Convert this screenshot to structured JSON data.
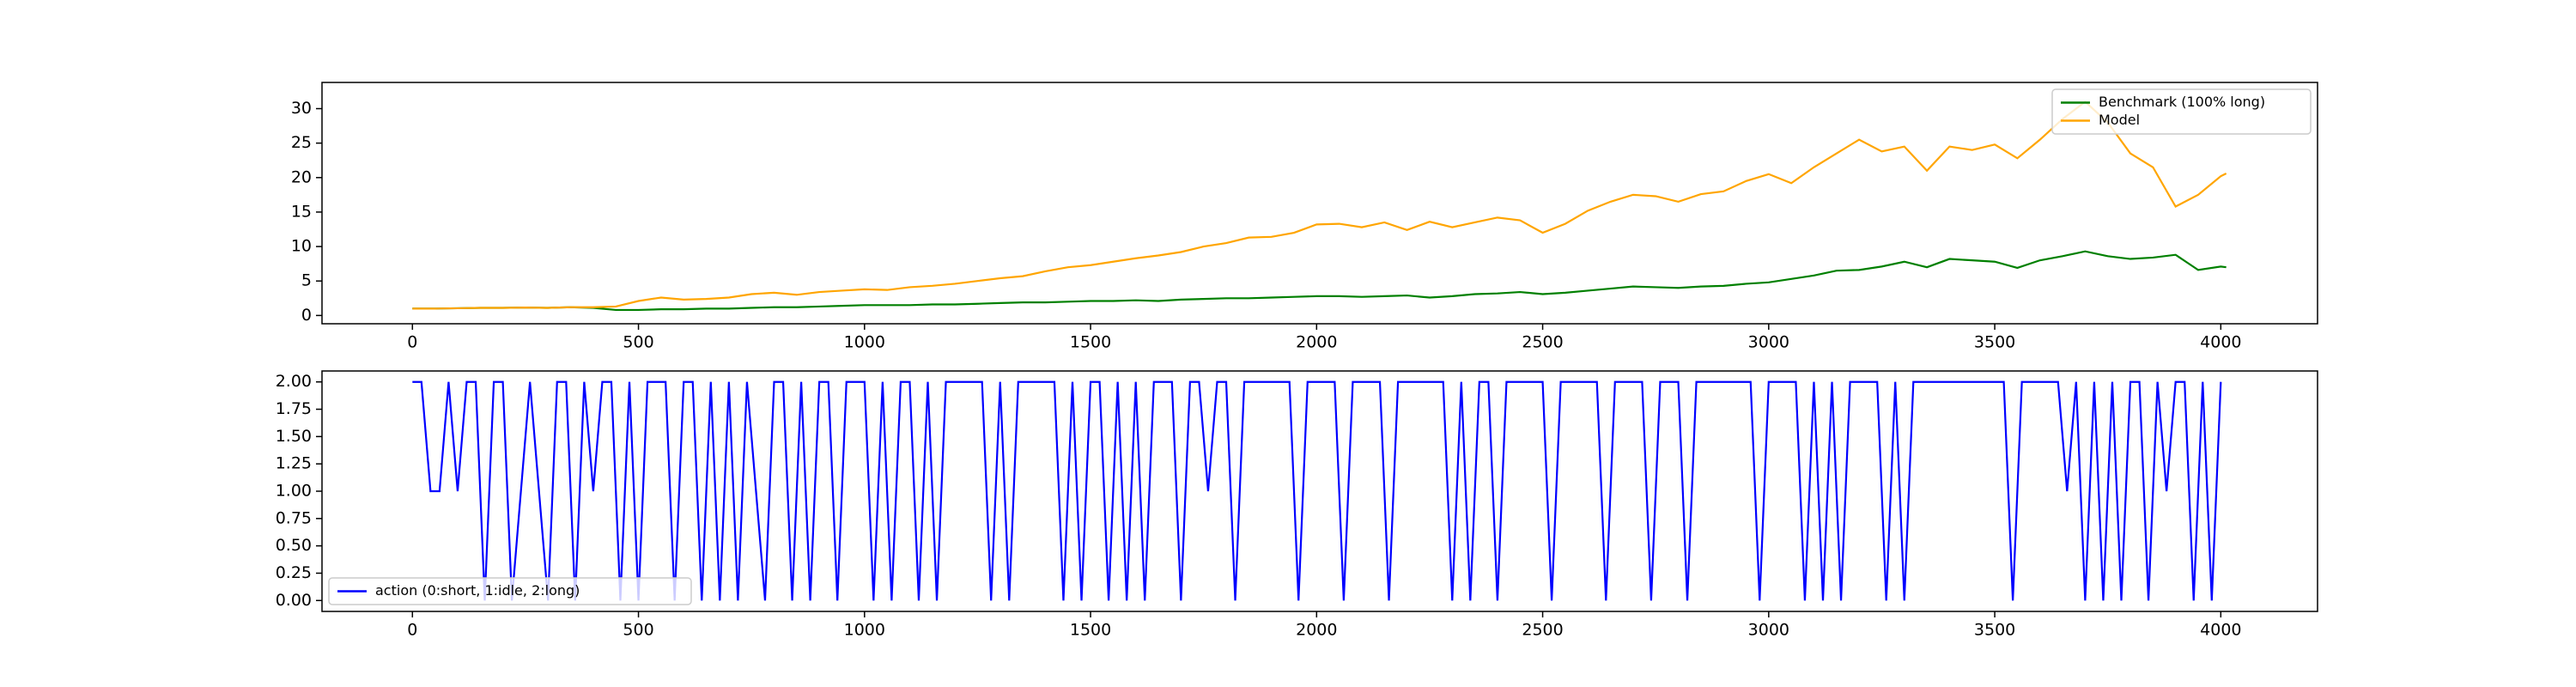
{
  "chart_data": [
    {
      "type": "line",
      "legend": "upper right",
      "x": [
        0,
        50,
        100,
        150,
        200,
        250,
        300,
        350,
        400,
        450,
        500,
        550,
        600,
        650,
        700,
        750,
        800,
        850,
        900,
        950,
        1000,
        1050,
        1100,
        1150,
        1200,
        1250,
        1300,
        1350,
        1400,
        1450,
        1500,
        1550,
        1600,
        1650,
        1700,
        1750,
        1800,
        1850,
        1900,
        1950,
        2000,
        2050,
        2100,
        2150,
        2200,
        2250,
        2300,
        2350,
        2400,
        2450,
        2500,
        2550,
        2600,
        2650,
        2700,
        2750,
        2800,
        2850,
        2900,
        2950,
        3000,
        3050,
        3100,
        3150,
        3200,
        3250,
        3300,
        3350,
        3400,
        3450,
        3500,
        3550,
        3600,
        3650,
        3700,
        3750,
        3800,
        3850,
        3900,
        3950,
        4000,
        4012
      ],
      "series": [
        {
          "name": "Benchmark (100% long)",
          "color": "#008000",
          "values": [
            1,
            1,
            1.05,
            1.1,
            1.1,
            1.15,
            1.1,
            1.2,
            1.1,
            0.8,
            0.8,
            0.9,
            0.9,
            1,
            1,
            1.1,
            1.2,
            1.2,
            1.3,
            1.4,
            1.5,
            1.5,
            1.5,
            1.6,
            1.6,
            1.7,
            1.8,
            1.9,
            1.9,
            2,
            2.1,
            2.1,
            2.2,
            2.1,
            2.3,
            2.4,
            2.5,
            2.5,
            2.6,
            2.7,
            2.8,
            2.8,
            2.7,
            2.8,
            2.9,
            2.6,
            2.8,
            3.1,
            3.2,
            3.4,
            3.1,
            3.3,
            3.6,
            3.9,
            4.2,
            4.1,
            4,
            4.2,
            4.3,
            4.6,
            4.8,
            5.3,
            5.8,
            6.5,
            6.6,
            7.1,
            7.8,
            7,
            8.2,
            8,
            7.8,
            6.9,
            8,
            8.6,
            9.3,
            8.6,
            8.2,
            8.4,
            8.8,
            6.6,
            7.1,
            7.0
          ]
        },
        {
          "name": "Model",
          "color": "#ffa500",
          "values": [
            1,
            1,
            1.05,
            1.1,
            1.1,
            1.15,
            1.1,
            1.2,
            1.2,
            1.3,
            2.1,
            2.6,
            2.3,
            2.4,
            2.6,
            3.1,
            3.3,
            3,
            3.4,
            3.6,
            3.8,
            3.7,
            4.1,
            4.3,
            4.6,
            5,
            5.4,
            5.7,
            6.4,
            7,
            7.3,
            7.8,
            8.3,
            8.7,
            9.2,
            10,
            10.5,
            11.3,
            11.4,
            12,
            13.2,
            13.3,
            12.8,
            13.5,
            12.4,
            13.6,
            12.8,
            13.5,
            14.2,
            13.8,
            12,
            13.3,
            15.2,
            16.5,
            17.5,
            17.3,
            16.5,
            17.6,
            18,
            19.5,
            20.5,
            19.2,
            21.5,
            23.5,
            25.5,
            23.8,
            24.5,
            21,
            24.5,
            24,
            24.8,
            22.8,
            25.5,
            28.5,
            31,
            28,
            23.5,
            21.5,
            15.8,
            17.5,
            20.2,
            20.6
          ]
        }
      ],
      "xlim": [
        -200,
        4214
      ],
      "xticks": [
        0,
        500,
        1000,
        1500,
        2000,
        2500,
        3000,
        3500,
        4000
      ],
      "ylim": [
        -1.2,
        33.8
      ],
      "yticks": [
        0,
        5,
        10,
        15,
        20,
        25,
        30
      ]
    },
    {
      "type": "line",
      "legend": "lower left",
      "x": [
        0,
        20,
        40,
        60,
        80,
        100,
        120,
        140,
        160,
        180,
        200,
        220,
        240,
        260,
        280,
        300,
        320,
        340,
        360,
        380,
        400,
        420,
        440,
        460,
        480,
        500,
        520,
        540,
        560,
        580,
        600,
        620,
        640,
        660,
        680,
        700,
        720,
        740,
        760,
        780,
        800,
        820,
        840,
        860,
        880,
        900,
        920,
        940,
        960,
        980,
        1000,
        1020,
        1040,
        1060,
        1080,
        1100,
        1120,
        1140,
        1160,
        1180,
        1200,
        1220,
        1240,
        1260,
        1280,
        1300,
        1320,
        1340,
        1360,
        1380,
        1400,
        1420,
        1440,
        1460,
        1480,
        1500,
        1520,
        1540,
        1560,
        1580,
        1600,
        1620,
        1640,
        1660,
        1680,
        1700,
        1720,
        1740,
        1760,
        1780,
        1800,
        1820,
        1840,
        1860,
        1880,
        1900,
        1920,
        1940,
        1960,
        1980,
        2000,
        2020,
        2040,
        2060,
        2080,
        2100,
        2120,
        2140,
        2160,
        2180,
        2200,
        2220,
        2240,
        2260,
        2280,
        2300,
        2320,
        2340,
        2360,
        2380,
        2400,
        2420,
        2440,
        2460,
        2480,
        2500,
        2520,
        2540,
        2560,
        2580,
        2600,
        2620,
        2640,
        2660,
        2680,
        2700,
        2720,
        2740,
        2760,
        2780,
        2800,
        2820,
        2840,
        2860,
        2880,
        2900,
        2920,
        2940,
        2960,
        2980,
        3000,
        3020,
        3040,
        3060,
        3080,
        3100,
        3120,
        3140,
        3160,
        3180,
        3200,
        3220,
        3240,
        3260,
        3280,
        3300,
        3320,
        3340,
        3360,
        3380,
        3400,
        3420,
        3440,
        3460,
        3480,
        3500,
        3520,
        3540,
        3560,
        3580,
        3600,
        3620,
        3640,
        3660,
        3680,
        3700,
        3720,
        3740,
        3760,
        3780,
        3800,
        3820,
        3840,
        3860,
        3880,
        3900,
        3920,
        3940,
        3960,
        3980,
        4000
      ],
      "series": [
        {
          "name": "action (0:short, 1:idle, 2:long)",
          "color": "#0000ff",
          "values": [
            2,
            2,
            1,
            1,
            2,
            1,
            2,
            2,
            0,
            2,
            2,
            0,
            1,
            2,
            1,
            0,
            2,
            2,
            0,
            2,
            1,
            2,
            2,
            0,
            2,
            0,
            2,
            2,
            2,
            0,
            2,
            2,
            0,
            2,
            0,
            2,
            0,
            2,
            1,
            0,
            2,
            2,
            0,
            2,
            0,
            2,
            2,
            0,
            2,
            2,
            2,
            0,
            2,
            0,
            2,
            2,
            0,
            2,
            0,
            2,
            2,
            2,
            2,
            2,
            0,
            2,
            0,
            2,
            2,
            2,
            2,
            2,
            0,
            2,
            0,
            2,
            2,
            0,
            2,
            0,
            2,
            0,
            2,
            2,
            2,
            0,
            2,
            2,
            1,
            2,
            2,
            0,
            2,
            2,
            2,
            2,
            2,
            2,
            0,
            2,
            2,
            2,
            2,
            0,
            2,
            2,
            2,
            2,
            0,
            2,
            2,
            2,
            2,
            2,
            2,
            0,
            2,
            0,
            2,
            2,
            0,
            2,
            2,
            2,
            2,
            2,
            0,
            2,
            2,
            2,
            2,
            2,
            0,
            2,
            2,
            2,
            2,
            0,
            2,
            2,
            2,
            0,
            2,
            2,
            2,
            2,
            2,
            2,
            2,
            0,
            2,
            2,
            2,
            2,
            0,
            2,
            0,
            2,
            0,
            2,
            2,
            2,
            2,
            0,
            2,
            0,
            2,
            2,
            2,
            2,
            2,
            2,
            2,
            2,
            2,
            2,
            2,
            0,
            2,
            2,
            2,
            2,
            2,
            1,
            2,
            0,
            2,
            0,
            2,
            0,
            2,
            2,
            0,
            2,
            1,
            2,
            2,
            0,
            2,
            0,
            2
          ]
        }
      ],
      "xlim": [
        -200,
        4214
      ],
      "xticks": [
        0,
        500,
        1000,
        1500,
        2000,
        2500,
        3000,
        3500,
        4000
      ],
      "ylim": [
        -0.1,
        2.1
      ],
      "yticks": [
        {
          "value": 0,
          "label": "0.00"
        },
        {
          "value": 0.25,
          "label": "0.25"
        },
        {
          "value": 0.5,
          "label": "0.50"
        },
        {
          "value": 0.75,
          "label": "0.75"
        },
        {
          "value": 1,
          "label": "1.00"
        },
        {
          "value": 1.25,
          "label": "1.25"
        },
        {
          "value": 1.5,
          "label": "1.50"
        },
        {
          "value": 1.75,
          "label": "1.75"
        },
        {
          "value": 2,
          "label": "2.00"
        }
      ]
    }
  ]
}
